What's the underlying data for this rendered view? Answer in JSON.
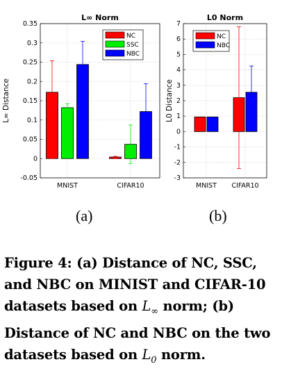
{
  "charts": [
    {
      "id": "a",
      "title": "L∞ Norm",
      "ylabel": "L∞ Distance",
      "ylim": [
        -0.05,
        0.35
      ],
      "yticks": [
        -0.05,
        0,
        0.05,
        0.1,
        0.15,
        0.2,
        0.25,
        0.3,
        0.35
      ],
      "ytick_labels": [
        "-0.05",
        "0",
        "0.05",
        "0.1",
        "0.15",
        "0.2",
        "0.25",
        "0.3",
        "0.35"
      ],
      "categories": [
        "MNIST",
        "CIFAR10"
      ],
      "series": [
        {
          "name": "NC",
          "color": "#ff0000",
          "values": [
            0.172,
            0.004
          ],
          "err": [
            [
              0.0,
              0.254
            ],
            [
              0.0,
              0.006
            ]
          ]
        },
        {
          "name": "SSC",
          "color": "#00ee00",
          "values": [
            0.132,
            0.037
          ],
          "err": [
            [
              0.122,
              0.142
            ],
            [
              -0.013,
              0.087
            ]
          ]
        },
        {
          "name": "NBC",
          "color": "#0000ff",
          "values": [
            0.244,
            0.122
          ],
          "err": [
            [
              0.182,
              0.304
            ],
            [
              0.05,
              0.194
            ]
          ]
        }
      ],
      "legend_position": "top-right",
      "grid": true
    },
    {
      "id": "b",
      "title": "L0 Norm",
      "ylabel": "L0 Distance",
      "ylim": [
        -3,
        7
      ],
      "yticks": [
        -3,
        -2,
        -1,
        0,
        1,
        2,
        3,
        4,
        5,
        6,
        7
      ],
      "ytick_labels": [
        "-3",
        "-2",
        "-1",
        "0",
        "1",
        "2",
        "3",
        "4",
        "5",
        "6",
        "7"
      ],
      "categories": [
        "MNIST",
        "CIFAR10"
      ],
      "series": [
        {
          "name": "NC",
          "color": "#ff0000",
          "values": [
            0.95,
            2.2
          ],
          "err": [
            [
              0.95,
              0.95
            ],
            [
              -2.4,
              6.8
            ]
          ]
        },
        {
          "name": "NBC",
          "color": "#0000ff",
          "values": [
            0.95,
            2.55
          ],
          "err": [
            [
              0.95,
              0.95
            ],
            [
              0.85,
              4.25
            ]
          ]
        }
      ],
      "legend_position": "top-left",
      "grid": true
    }
  ],
  "chart_data": [
    {
      "type": "bar",
      "title": "L∞ Norm",
      "xlabel": "",
      "ylabel": "L∞ Distance",
      "categories": [
        "MNIST",
        "CIFAR10"
      ],
      "series": [
        {
          "name": "NC",
          "values": [
            0.172,
            0.004
          ]
        },
        {
          "name": "SSC",
          "values": [
            0.132,
            0.037
          ]
        },
        {
          "name": "NBC",
          "values": [
            0.244,
            0.122
          ]
        }
      ],
      "ylim": [
        -0.05,
        0.35
      ]
    },
    {
      "type": "bar",
      "title": "L0 Norm",
      "xlabel": "",
      "ylabel": "L0 Distance",
      "categories": [
        "MNIST",
        "CIFAR10"
      ],
      "series": [
        {
          "name": "NC",
          "values": [
            0.95,
            2.2
          ]
        },
        {
          "name": "NBC",
          "values": [
            0.95,
            2.55
          ]
        }
      ],
      "ylim": [
        -3,
        7
      ]
    }
  ],
  "sublabels": [
    "(a)",
    "(b)"
  ],
  "caption": {
    "part1": "Figure 4: (a) Distance of NC, SSC, and NBC on MINIST and CIFAR-10 datasets based on ",
    "math1": "L",
    "math1_sub": "∞",
    "part2": " norm; (b) Distance of NC and NBC on the two datasets based on ",
    "math2": "L",
    "math2_sub": "0",
    "part3": " norm."
  }
}
